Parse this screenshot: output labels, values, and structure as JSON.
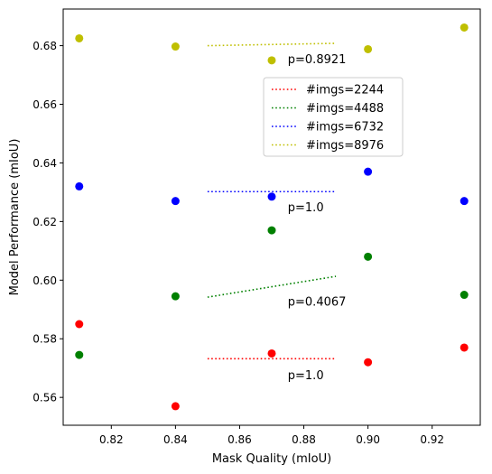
{
  "chart_data": {
    "type": "scatter",
    "xlabel": "Mask Quality (mIoU)",
    "ylabel": "Model Performance (mIoU)",
    "xlim": [
      0.805,
      0.935
    ],
    "ylim": [
      0.5505,
      0.6925
    ],
    "xticks": [
      0.82,
      0.84,
      0.86,
      0.88,
      0.9,
      0.92
    ],
    "xtick_labels": [
      "0.82",
      "0.84",
      "0.86",
      "0.88",
      "0.90",
      "0.92"
    ],
    "yticks": [
      0.56,
      0.58,
      0.6,
      0.62,
      0.64,
      0.66,
      0.68
    ],
    "ytick_labels": [
      "0.56",
      "0.58",
      "0.60",
      "0.62",
      "0.64",
      "0.66",
      "0.68"
    ],
    "legend_position": "upper-center-right",
    "series": [
      {
        "name": "#imgs=2244",
        "color": "#ff0000",
        "x": [
          0.81,
          0.84,
          0.87,
          0.9,
          0.93
        ],
        "y": [
          0.585,
          0.557,
          0.575,
          0.572,
          0.577
        ],
        "trend": {
          "x": [
            0.85,
            0.89
          ],
          "y": [
            0.5732,
            0.5732
          ]
        },
        "annotation": {
          "text": "p=1.0",
          "x": 0.875,
          "y": 0.5675
        }
      },
      {
        "name": "#imgs=4488",
        "color": "#008000",
        "x": [
          0.81,
          0.84,
          0.87,
          0.9,
          0.93
        ],
        "y": [
          0.5745,
          0.5945,
          0.617,
          0.608,
          0.595
        ],
        "trend": {
          "x": [
            0.85,
            0.89
          ],
          "y": [
            0.5942,
            0.6013
          ]
        },
        "annotation": {
          "text": "p=0.4067",
          "x": 0.875,
          "y": 0.5925
        }
      },
      {
        "name": "#imgs=6732",
        "color": "#0000ff",
        "x": [
          0.81,
          0.84,
          0.87,
          0.9,
          0.93
        ],
        "y": [
          0.632,
          0.627,
          0.6285,
          0.637,
          0.627
        ],
        "trend": {
          "x": [
            0.85,
            0.89
          ],
          "y": [
            0.6302,
            0.6302
          ]
        },
        "annotation": {
          "text": "p=1.0",
          "x": 0.875,
          "y": 0.6248
        }
      },
      {
        "name": "#imgs=8976",
        "color": "#bfbf00",
        "x": [
          0.81,
          0.84,
          0.87,
          0.9,
          0.93
        ],
        "y": [
          0.6825,
          0.6797,
          0.675,
          0.6788,
          0.6862
        ],
        "trend": {
          "x": [
            0.85,
            0.89
          ],
          "y": [
            0.68,
            0.6808
          ]
        },
        "annotation": {
          "text": "p=0.8921",
          "x": 0.875,
          "y": 0.6752
        }
      }
    ]
  }
}
